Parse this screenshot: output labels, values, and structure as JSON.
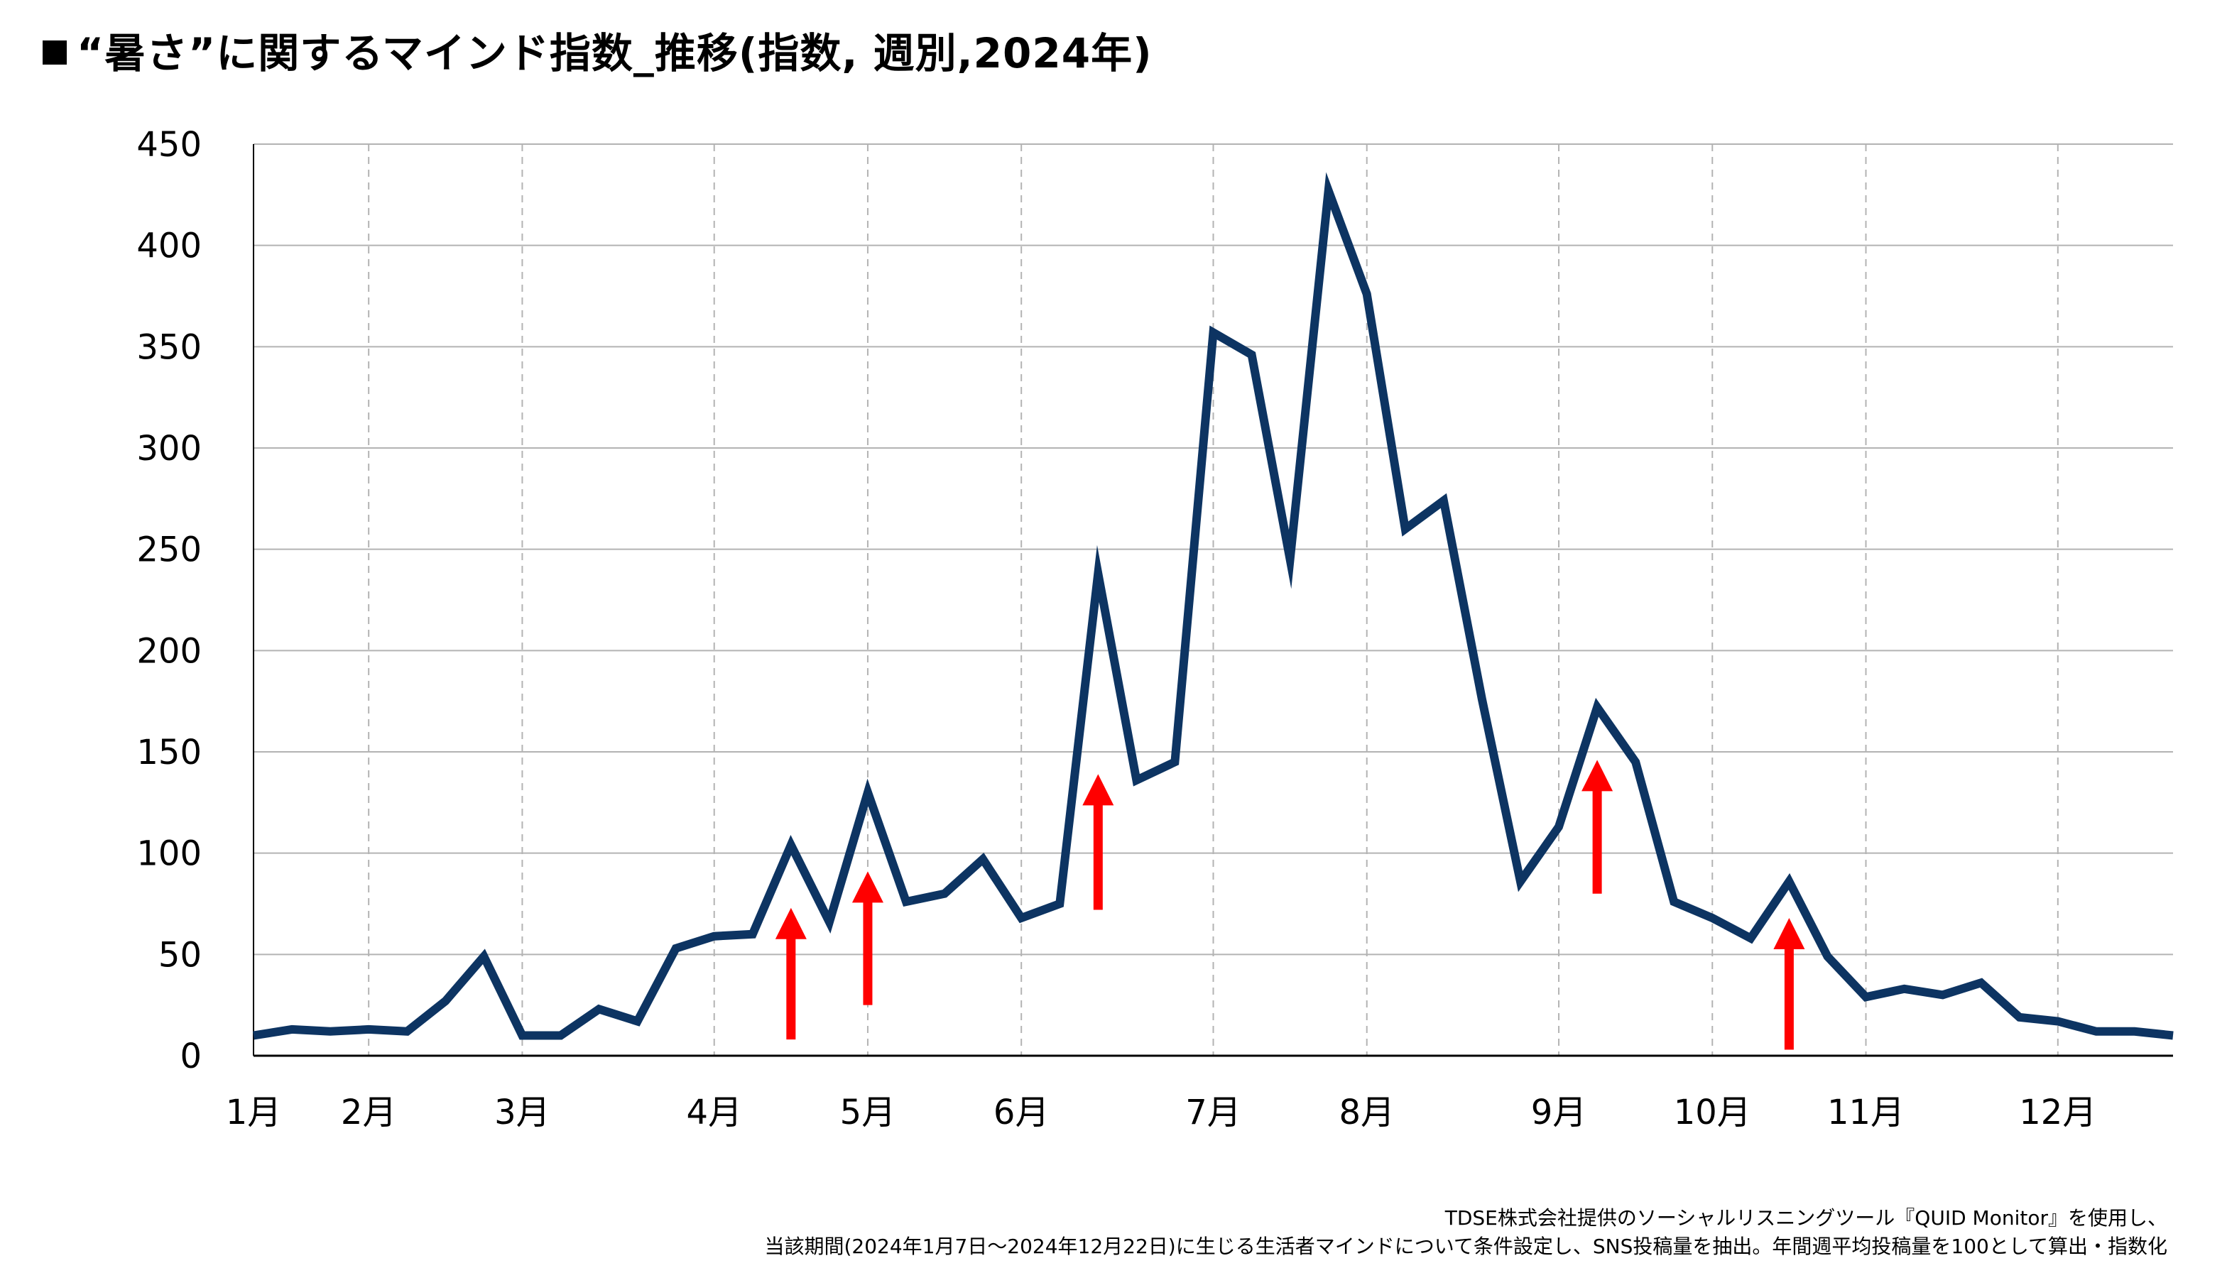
{
  "title": "“暑さ”に関するマインド指数_推移(指数, 週別,2024年)",
  "footnote": {
    "line1": "TDSE株式会社提供のソーシャルリスニングツール『QUID Monitor』を使用し、",
    "line2": "当該期間(2024年1月7日～2024年12月22日)に生じる生活者マインドについて条件設定し、SNS投稿量を抽出。年間週平均投稿量を100として算出・指数化"
  },
  "colors": {
    "line": "#0d3462",
    "arrow": "#ff0000",
    "grid": "#b3b3b3",
    "month_divider": "#b3b3b3",
    "axis": "#000000"
  },
  "chart_data": {
    "type": "line",
    "title": "“暑さ”に関するマインド指数_推移(指数, 週別,2024年)",
    "xlabel": "",
    "ylabel": "",
    "ylim": [
      0,
      450
    ],
    "yticks": [
      0,
      50,
      100,
      150,
      200,
      250,
      300,
      350,
      400,
      450
    ],
    "grid": "horizontal solid lines; vertical dashed lines at month starts",
    "x_tick_labels": [
      "1月",
      "2月",
      "3月",
      "4月",
      "5月",
      "6月",
      "7月",
      "8月",
      "9月",
      "10月",
      "11月",
      "12月"
    ],
    "x_tick_week": [
      0,
      3,
      7,
      12,
      16,
      20,
      25,
      29,
      34,
      38,
      42,
      47
    ],
    "x_week_range": [
      0,
      50
    ],
    "series": [
      {
        "values": [
          10,
          13,
          12,
          13,
          12,
          27,
          49,
          10,
          10,
          23,
          17,
          53,
          59,
          60,
          104,
          66,
          130,
          76,
          80,
          97,
          68,
          75,
          238,
          136,
          145,
          357,
          346,
          245,
          427,
          376,
          260,
          274,
          176,
          86,
          113,
          172,
          145,
          76,
          68,
          58,
          86,
          49,
          29,
          33,
          30,
          36,
          19,
          17,
          12,
          12,
          10
        ]
      }
    ],
    "arrows": [
      {
        "week": 14,
        "from": 8,
        "to": 73
      },
      {
        "week": 16,
        "from": 25,
        "to": 91
      },
      {
        "week": 22,
        "from": 72,
        "to": 139
      },
      {
        "week": 35,
        "from": 80,
        "to": 146
      },
      {
        "week": 40,
        "from": 3,
        "to": 68
      }
    ]
  }
}
